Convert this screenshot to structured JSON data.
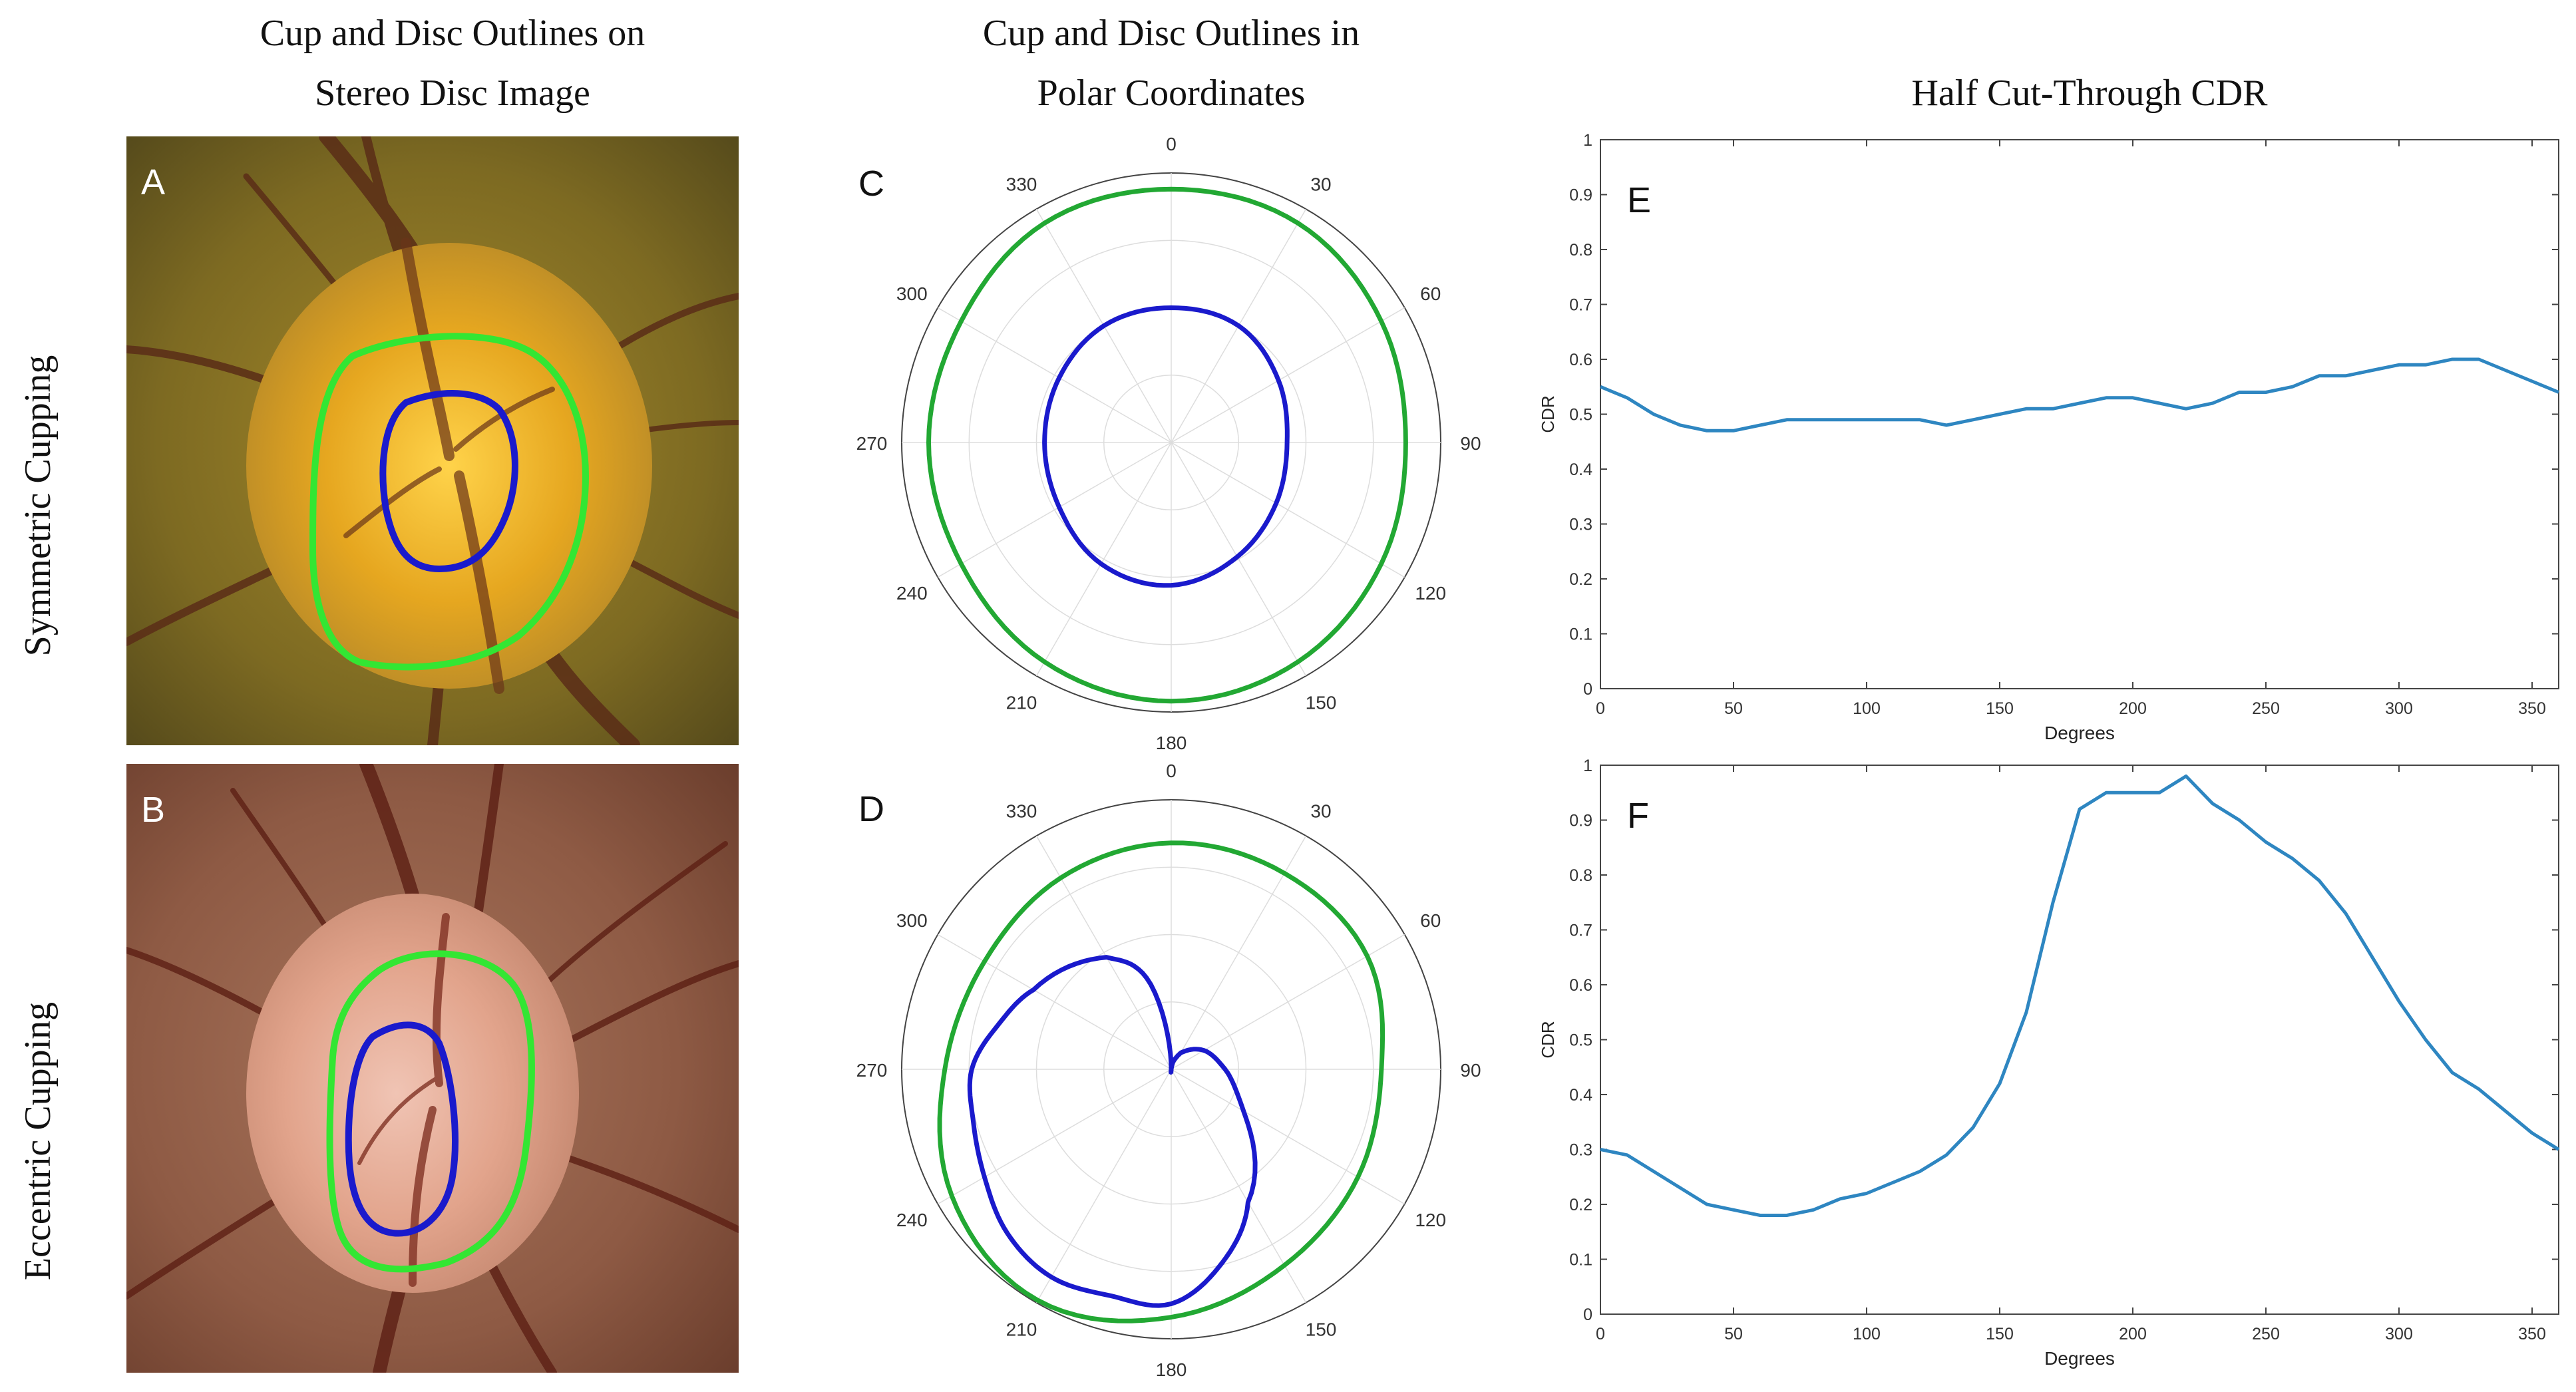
{
  "column_titles": {
    "col1_line1": "Cup and Disc Outlines on",
    "col1_line2": "Stereo Disc Image",
    "col2_line1": "Cup and Disc Outlines in",
    "col2_line2": "Polar Coordinates",
    "col3": "Half Cut-Through CDR"
  },
  "row_titles": {
    "row1": "Symmetric Cupping",
    "row2": "Eccentric Cupping"
  },
  "panel_letters": {
    "A": "A",
    "B": "B",
    "C": "C",
    "D": "D",
    "E": "E",
    "F": "F"
  },
  "colors": {
    "disc": "#22a833",
    "cup": "#1a1acc",
    "photo_disc_outline": "#33e633",
    "cdr_line": "#2e86c1"
  },
  "chart_data": [
    {
      "id": "C",
      "type": "polar",
      "angle_direction": "clockwise",
      "zero_location": "top",
      "angle_ticks": [
        0,
        30,
        60,
        90,
        120,
        150,
        180,
        210,
        240,
        270,
        300,
        330
      ],
      "series": [
        {
          "role": "disc",
          "theta": [
            0,
            30,
            60,
            90,
            120,
            150,
            180,
            210,
            240,
            270,
            300,
            330
          ],
          "r": [
            0.94,
            0.94,
            0.9,
            0.87,
            0.9,
            0.94,
            0.96,
            0.94,
            0.9,
            0.9,
            0.9,
            0.94
          ]
        },
        {
          "role": "cup",
          "theta": [
            0,
            30,
            60,
            90,
            120,
            150,
            180,
            210,
            240,
            270,
            300,
            330
          ],
          "r": [
            0.5,
            0.5,
            0.46,
            0.43,
            0.45,
            0.49,
            0.53,
            0.52,
            0.48,
            0.47,
            0.48,
            0.5
          ]
        }
      ]
    },
    {
      "id": "D",
      "type": "polar",
      "angle_direction": "clockwise",
      "zero_location": "top",
      "angle_ticks": [
        0,
        30,
        60,
        90,
        120,
        150,
        180,
        210,
        240,
        270,
        300,
        330
      ],
      "series": [
        {
          "role": "disc",
          "theta": [
            0,
            30,
            60,
            90,
            120,
            150,
            180,
            210,
            240,
            270,
            300,
            330
          ],
          "r": [
            0.84,
            0.84,
            0.84,
            0.78,
            0.8,
            0.84,
            0.92,
            0.99,
            0.94,
            0.84,
            0.8,
            0.82
          ]
        },
        {
          "role": "cup",
          "theta": [
            0,
            15,
            30,
            60,
            90,
            120,
            150,
            165,
            180,
            195,
            210,
            225,
            240,
            255,
            270,
            285,
            300,
            330,
            345
          ],
          "r": [
            0.01,
            0.03,
            0.07,
            0.14,
            0.2,
            0.31,
            0.57,
            0.74,
            0.87,
            0.87,
            0.89,
            0.86,
            0.8,
            0.76,
            0.74,
            0.66,
            0.59,
            0.48,
            0.35
          ]
        }
      ]
    },
    {
      "id": "E",
      "type": "line",
      "xlabel": "Degrees",
      "ylabel": "CDR",
      "xlim": [
        0,
        360
      ],
      "ylim": [
        0,
        1
      ],
      "xticks": [
        0,
        50,
        100,
        150,
        200,
        250,
        300,
        350
      ],
      "yticks": [
        0,
        0.1,
        0.2,
        0.3,
        0.4,
        0.5,
        0.6,
        0.7,
        0.8,
        0.9,
        1
      ],
      "series": [
        {
          "x": [
            0,
            10,
            20,
            30,
            40,
            50,
            60,
            70,
            80,
            90,
            100,
            110,
            120,
            130,
            140,
            150,
            160,
            170,
            180,
            190,
            200,
            210,
            220,
            230,
            240,
            250,
            260,
            270,
            280,
            290,
            300,
            310,
            320,
            330,
            340,
            350,
            360
          ],
          "y": [
            0.55,
            0.53,
            0.5,
            0.48,
            0.47,
            0.47,
            0.48,
            0.49,
            0.49,
            0.49,
            0.49,
            0.49,
            0.49,
            0.48,
            0.49,
            0.5,
            0.51,
            0.51,
            0.52,
            0.53,
            0.53,
            0.52,
            0.51,
            0.52,
            0.54,
            0.54,
            0.55,
            0.57,
            0.57,
            0.58,
            0.59,
            0.59,
            0.6,
            0.6,
            0.58,
            0.56,
            0.54
          ]
        }
      ]
    },
    {
      "id": "F",
      "type": "line",
      "xlabel": "Degrees",
      "ylabel": "CDR",
      "xlim": [
        0,
        360
      ],
      "ylim": [
        0,
        1
      ],
      "xticks": [
        0,
        50,
        100,
        150,
        200,
        250,
        300,
        350
      ],
      "yticks": [
        0,
        0.1,
        0.2,
        0.3,
        0.4,
        0.5,
        0.6,
        0.7,
        0.8,
        0.9,
        1
      ],
      "series": [
        {
          "x": [
            0,
            10,
            20,
            30,
            40,
            50,
            60,
            70,
            80,
            90,
            100,
            110,
            120,
            130,
            140,
            150,
            160,
            170,
            180,
            190,
            200,
            210,
            220,
            230,
            240,
            250,
            260,
            270,
            280,
            290,
            300,
            310,
            320,
            330,
            340,
            350,
            360
          ],
          "y": [
            0.3,
            0.29,
            0.26,
            0.23,
            0.2,
            0.19,
            0.18,
            0.18,
            0.19,
            0.21,
            0.22,
            0.24,
            0.26,
            0.29,
            0.34,
            0.42,
            0.55,
            0.75,
            0.92,
            0.95,
            0.95,
            0.95,
            0.98,
            0.93,
            0.9,
            0.86,
            0.83,
            0.79,
            0.73,
            0.65,
            0.57,
            0.5,
            0.44,
            0.41,
            0.37,
            0.33,
            0.3
          ]
        }
      ]
    }
  ]
}
